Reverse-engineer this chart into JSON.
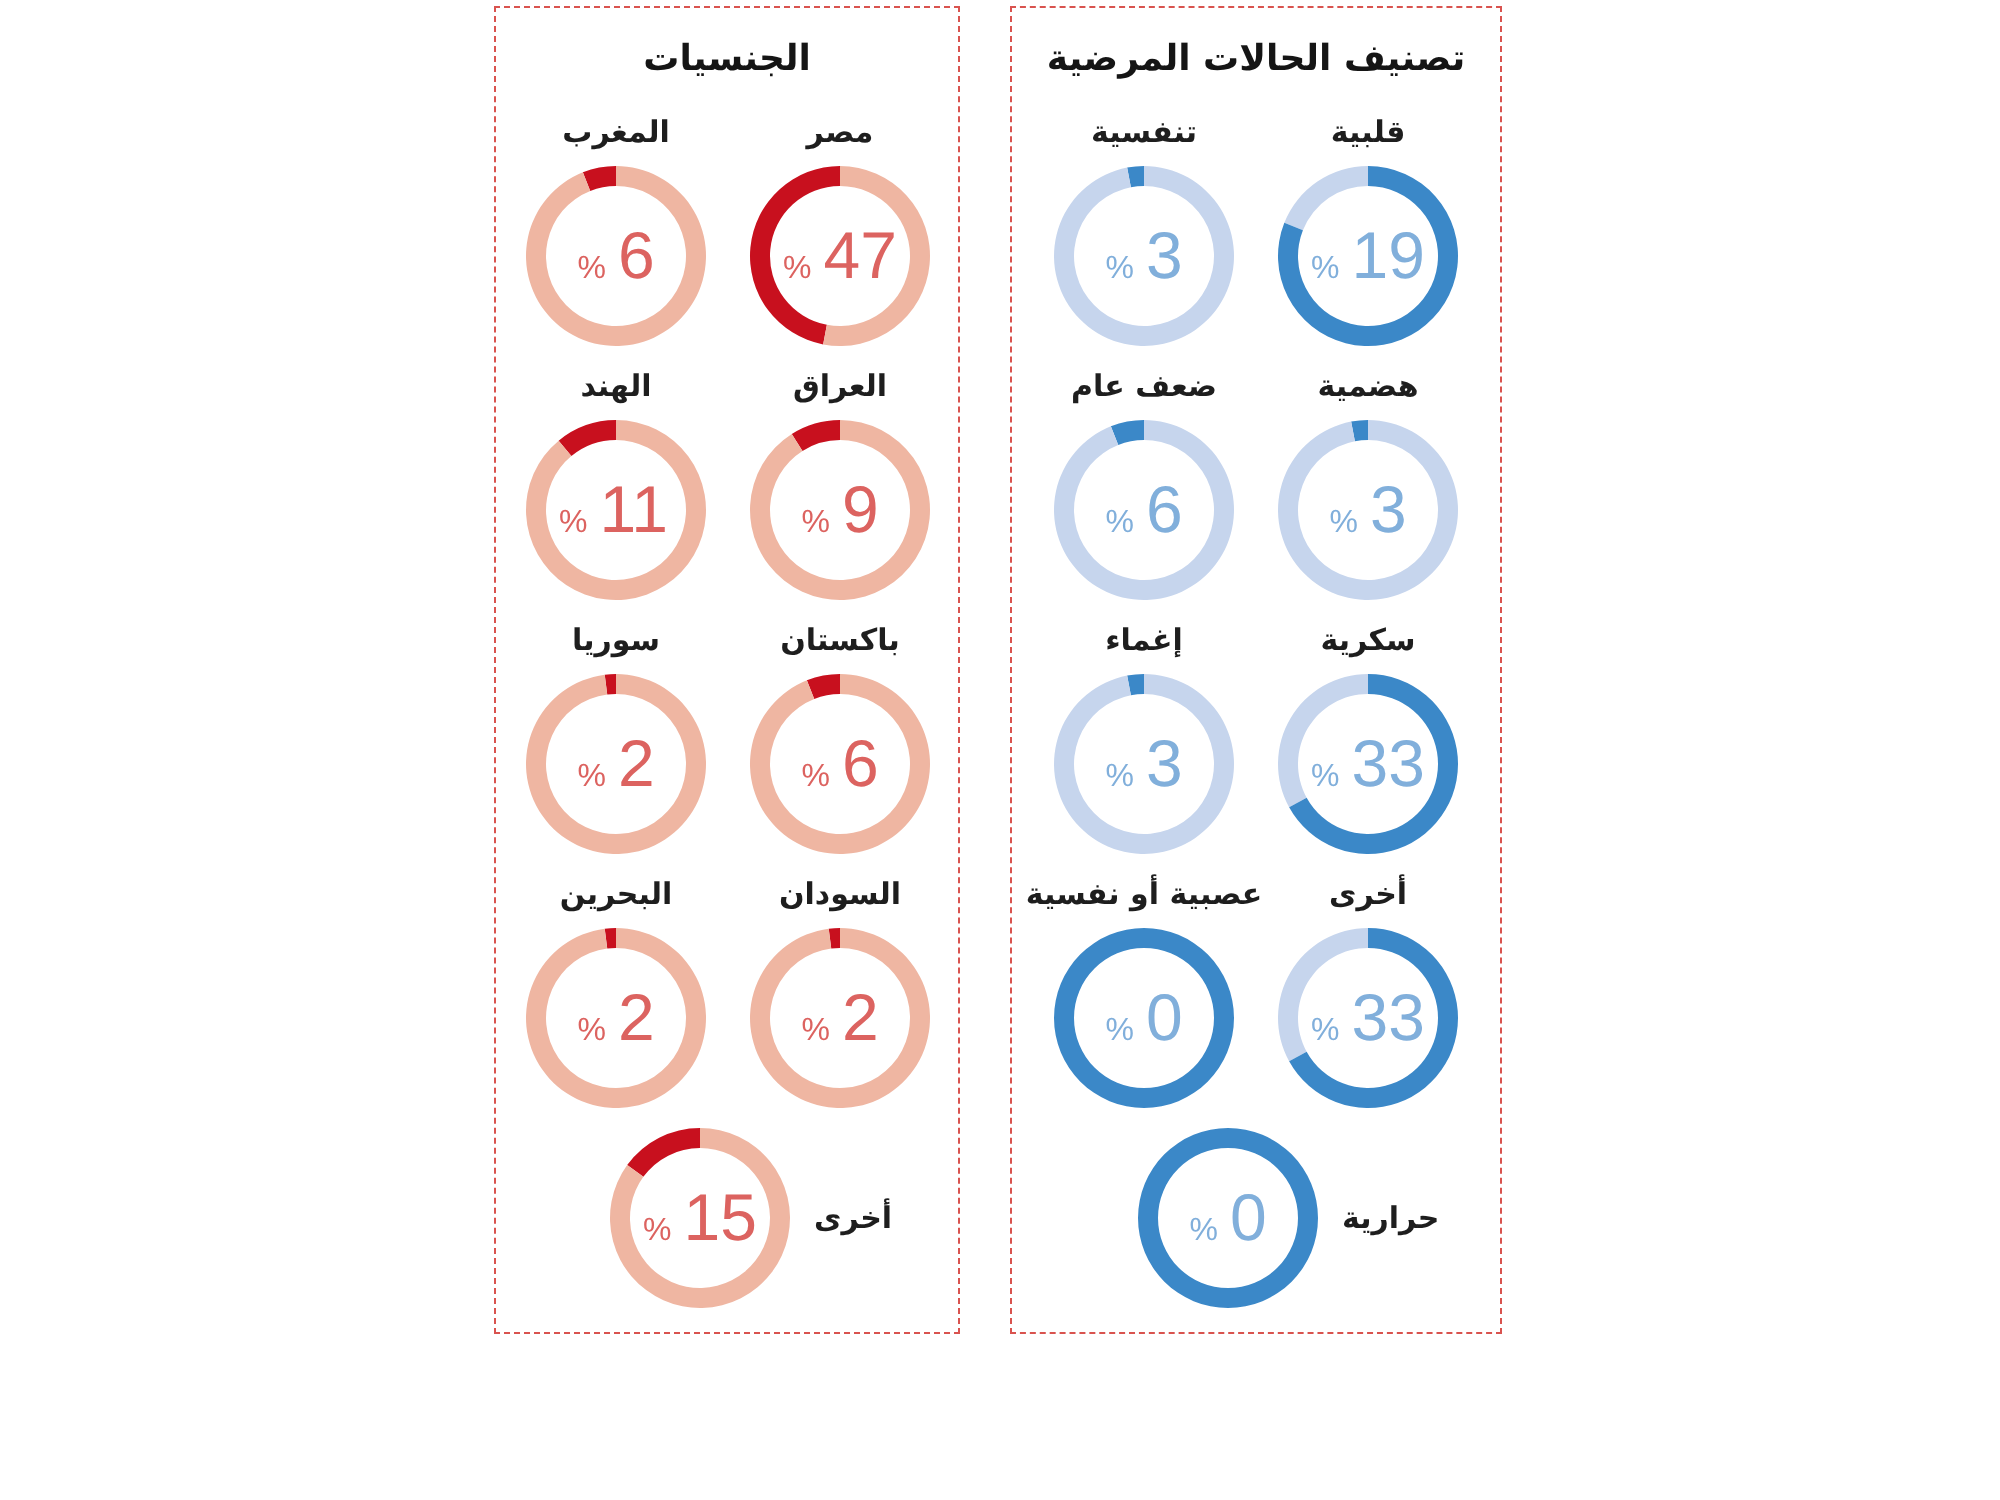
{
  "chart_data": [
    {
      "type": "other",
      "title": "تصنيف الحالات المرضية"
    },
    {
      "type": "donut",
      "title": "قلبية",
      "categories": [
        null,
        null
      ],
      "values": [
        19,
        81
      ],
      "colors": [
        "#c6d5ed",
        "#3b88c8"
      ],
      "value_labels": [
        "% 19",
        null
      ]
    },
    {
      "type": "donut",
      "title": "تنفسية",
      "categories": [
        null,
        null
      ],
      "values": [
        3,
        97
      ],
      "colors": [
        "#3b88c8",
        "#c6d5ed"
      ],
      "value_labels": [
        "% 3",
        null
      ]
    },
    {
      "type": "donut",
      "title": "هضمية",
      "categories": [
        null,
        null
      ],
      "values": [
        3,
        97
      ],
      "colors": [
        "#3b88c8",
        "#c6d5ed"
      ],
      "value_labels": [
        "% 3",
        null
      ]
    },
    {
      "type": "donut",
      "title": "ضعف عام",
      "categories": [
        null,
        null
      ],
      "values": [
        6,
        94
      ],
      "colors": [
        "#3b88c8",
        "#c6d5ed"
      ],
      "value_labels": [
        "% 6",
        null
      ]
    },
    {
      "type": "donut",
      "title": "سكرية",
      "categories": [
        null,
        null
      ],
      "values": [
        33,
        67
      ],
      "colors": [
        "#c6d5ed",
        "#3b88c8"
      ],
      "value_labels": [
        "% 33",
        null
      ]
    },
    {
      "type": "donut",
      "title": "إغماء",
      "categories": [
        null,
        null
      ],
      "values": [
        3,
        97
      ],
      "colors": [
        "#3b88c8",
        "#c6d5ed"
      ],
      "value_labels": [
        "% 3",
        null
      ]
    },
    {
      "type": "donut",
      "title": "أخرى",
      "categories": [
        null,
        null
      ],
      "values": [
        33,
        67
      ],
      "colors": [
        "#c6d5ed",
        "#3b88c8"
      ],
      "value_labels": [
        "% 33",
        null
      ]
    },
    {
      "type": "donut",
      "title": "عصبية أو نفسية",
      "categories": [
        null,
        null
      ],
      "values": [
        0,
        100
      ],
      "colors": [
        "#c6d5ed",
        "#3b88c8"
      ],
      "value_labels": [
        "% 0",
        null
      ]
    },
    {
      "type": "donut",
      "title": "حرارية",
      "categories": [
        null,
        null
      ],
      "values": [
        0,
        100
      ],
      "colors": [
        "#c6d5ed",
        "#3b88c8"
      ],
      "value_labels": [
        "% 0",
        null
      ]
    },
    {
      "type": "other",
      "title": "الجنسيات"
    },
    {
      "type": "donut",
      "title": "مصر",
      "categories": [
        null,
        null
      ],
      "values": [
        47,
        53
      ],
      "colors": [
        "#c8101e",
        "#efb6a2"
      ],
      "value_labels": [
        "% 47",
        null
      ]
    },
    {
      "type": "donut",
      "title": "المغرب",
      "categories": [
        null,
        null
      ],
      "values": [
        6,
        94
      ],
      "colors": [
        "#c8101e",
        "#efb6a2"
      ],
      "value_labels": [
        "% 6",
        null
      ]
    },
    {
      "type": "donut",
      "title": "العراق",
      "categories": [
        null,
        null
      ],
      "values": [
        9,
        91
      ],
      "colors": [
        "#c8101e",
        "#efb6a2"
      ],
      "value_labels": [
        "% 9",
        null
      ]
    },
    {
      "type": "donut",
      "title": "الهند",
      "categories": [
        null,
        null
      ],
      "values": [
        11,
        89
      ],
      "colors": [
        "#c8101e",
        "#efb6a2"
      ],
      "value_labels": [
        "% 11",
        null
      ]
    },
    {
      "type": "donut",
      "title": "باكستان",
      "categories": [
        null,
        null
      ],
      "values": [
        6,
        94
      ],
      "colors": [
        "#c8101e",
        "#efb6a2"
      ],
      "value_labels": [
        "% 6",
        null
      ]
    },
    {
      "type": "donut",
      "title": "سوريا",
      "categories": [
        null,
        null
      ],
      "values": [
        2,
        98
      ],
      "colors": [
        "#c8101e",
        "#efb6a2"
      ],
      "value_labels": [
        "% 2",
        null
      ]
    },
    {
      "type": "donut",
      "title": "السودان",
      "categories": [
        null,
        null
      ],
      "values": [
        2,
        98
      ],
      "colors": [
        "#c8101e",
        "#efb6a2"
      ],
      "value_labels": [
        "% 2",
        null
      ]
    },
    {
      "type": "donut",
      "title": "البحرين",
      "categories": [
        null,
        null
      ],
      "values": [
        2,
        98
      ],
      "colors": [
        "#c8101e",
        "#efb6a2"
      ],
      "value_labels": [
        "% 2",
        null
      ]
    },
    {
      "type": "donut",
      "title": "أخرى",
      "categories": [
        null,
        null
      ],
      "values": [
        15,
        85
      ],
      "colors": [
        "#c8101e",
        "#efb6a2"
      ],
      "value_labels": [
        "% 15",
        null
      ]
    }
  ]
}
